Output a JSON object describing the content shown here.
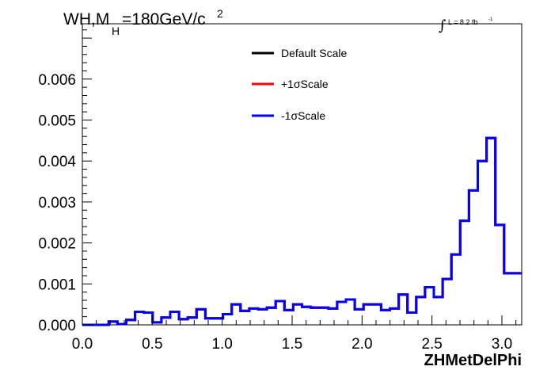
{
  "chart_data": {
    "type": "histogram",
    "title": {
      "prefix": "WH,M",
      "subscript": "H",
      "value": "=180GeV/c",
      "superscript": "2"
    },
    "lumi": {
      "integral_sign": "∫",
      "text": "L = 8.2 fb",
      "exponent": "-1"
    },
    "xlabel": "ZHMetDelPhi",
    "ylabel": "",
    "xlim": [
      0.0,
      3.1416
    ],
    "ylim": [
      0.0,
      0.00735
    ],
    "x_ticks": [
      {
        "value": 0.0,
        "label": "0.0"
      },
      {
        "value": 0.5,
        "label": "0.5"
      },
      {
        "value": 1.0,
        "label": "1.0"
      },
      {
        "value": 1.5,
        "label": "1.5"
      },
      {
        "value": 2.0,
        "label": "2.0"
      },
      {
        "value": 2.5,
        "label": "2.5"
      },
      {
        "value": 3.0,
        "label": "3.0"
      }
    ],
    "y_ticks": [
      {
        "value": 0.0,
        "label": "0.000"
      },
      {
        "value": 0.001,
        "label": "0.001"
      },
      {
        "value": 0.002,
        "label": "0.002"
      },
      {
        "value": 0.003,
        "label": "0.003"
      },
      {
        "value": 0.004,
        "label": "0.004"
      },
      {
        "value": 0.005,
        "label": "0.005"
      },
      {
        "value": 0.006,
        "label": "0.006"
      }
    ],
    "grid": false,
    "legend_position": "top-center",
    "bins": {
      "min": 0.0,
      "max": 3.1416,
      "count": 50
    },
    "series": [
      {
        "name": "Default Scale",
        "color": "#000000",
        "values": [
          0.0,
          0.0,
          0.0,
          8e-05,
          2e-05,
          0.00012,
          0.00032,
          0.0003,
          6e-05,
          0.00018,
          0.00032,
          0.00014,
          0.00018,
          0.00038,
          0.00016,
          0.00016,
          0.00026,
          0.0005,
          0.00034,
          0.0004,
          0.00038,
          0.00042,
          0.00058,
          0.00036,
          0.0005,
          0.00044,
          0.00042,
          0.00042,
          0.0004,
          0.00056,
          0.00062,
          0.00038,
          0.0005,
          0.0005,
          0.00036,
          0.0004,
          0.00074,
          0.0003,
          0.00068,
          0.00092,
          0.00068,
          0.00112,
          0.00172,
          0.00254,
          0.00328,
          0.004,
          0.00456,
          0.00244,
          0.00126,
          0.00126
        ]
      },
      {
        "name": "+1σScale",
        "color": "#ff0000",
        "values": [
          0.0,
          0.0,
          0.0,
          8e-05,
          2e-05,
          0.00012,
          0.00032,
          0.0003,
          6e-05,
          0.00018,
          0.00032,
          0.00014,
          0.00018,
          0.00038,
          0.00016,
          0.00016,
          0.00026,
          0.0005,
          0.00034,
          0.0004,
          0.00038,
          0.00042,
          0.00058,
          0.00036,
          0.0005,
          0.00044,
          0.00042,
          0.00042,
          0.0004,
          0.00056,
          0.00062,
          0.00038,
          0.0005,
          0.0005,
          0.00036,
          0.0004,
          0.00074,
          0.0003,
          0.00068,
          0.00092,
          0.00068,
          0.00112,
          0.00172,
          0.00254,
          0.00328,
          0.004,
          0.00456,
          0.00244,
          0.00126,
          0.00126
        ]
      },
      {
        "name": "-1σScale",
        "color": "#0000ff",
        "values": [
          0.0,
          0.0,
          0.0,
          8e-05,
          2e-05,
          0.00012,
          0.00032,
          0.0003,
          6e-05,
          0.00018,
          0.00032,
          0.00014,
          0.00018,
          0.00038,
          0.00016,
          0.00016,
          0.00026,
          0.0005,
          0.00034,
          0.0004,
          0.00038,
          0.00042,
          0.00058,
          0.00036,
          0.0005,
          0.00044,
          0.00042,
          0.00042,
          0.0004,
          0.00056,
          0.00062,
          0.00038,
          0.0005,
          0.0005,
          0.00036,
          0.0004,
          0.00074,
          0.0003,
          0.00068,
          0.00092,
          0.00068,
          0.00112,
          0.00172,
          0.00254,
          0.00328,
          0.004,
          0.00456,
          0.00244,
          0.00126,
          0.00126
        ]
      }
    ]
  }
}
